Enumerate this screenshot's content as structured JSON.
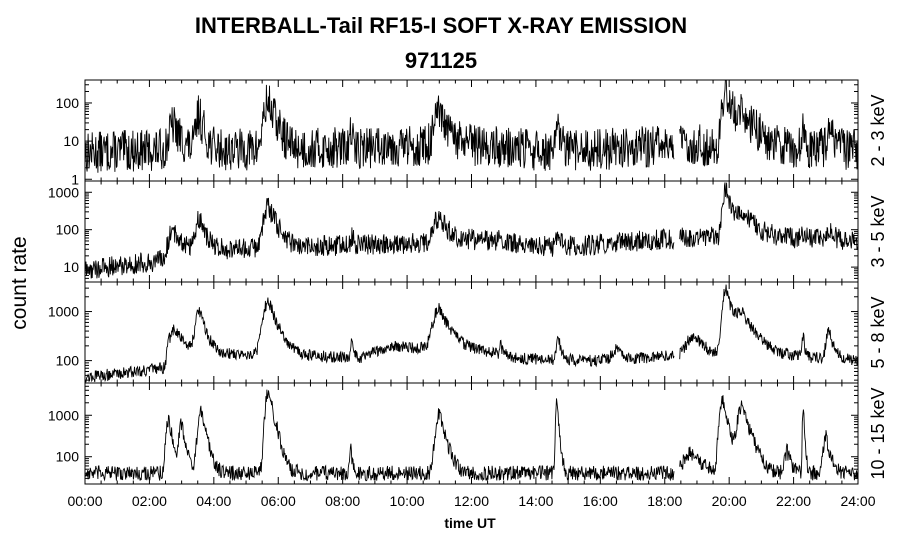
{
  "title": "INTERBALL-Tail RF15-I SOFT X-RAY EMISSION",
  "subtitle": "971125",
  "chart_data": {
    "type": "line",
    "xlabel": "time UT",
    "ylabel": "count rate",
    "xlim": [
      0,
      24
    ],
    "x_ticks": [
      "00:00",
      "02:00",
      "04:00",
      "06:00",
      "08:00",
      "10:00",
      "12:00",
      "14:00",
      "16:00",
      "18:00",
      "20:00",
      "22:00",
      "24:00"
    ],
    "yscale": "log",
    "grid": false,
    "panels": [
      {
        "name": "2 - 3 keV",
        "ylim": [
          0.9,
          400
        ],
        "y_ticks": [
          1,
          10,
          100
        ],
        "y_tick_labels": [
          "1",
          "10",
          "100"
        ],
        "baseline": 5,
        "noise": 0.55,
        "gaps": [
          [
            18.3,
            18.45
          ]
        ],
        "peaks": [
          [
            2.75,
            20,
            0.18
          ],
          [
            3.55,
            45,
            0.12
          ],
          [
            5.7,
            100,
            0.18
          ],
          [
            8.25,
            10,
            0.05
          ],
          [
            9.4,
            8,
            0.05
          ],
          [
            11.0,
            40,
            0.2
          ],
          [
            14.7,
            15,
            0.08
          ],
          [
            19.9,
            250,
            0.12
          ],
          [
            20.4,
            55,
            0.3
          ],
          [
            22.3,
            15,
            0.05
          ],
          [
            23.1,
            15,
            0.1
          ]
        ],
        "segments": [
          [
            0,
            5
          ],
          [
            2.5,
            6
          ],
          [
            6.5,
            6
          ],
          [
            11.8,
            8
          ],
          [
            14.6,
            5
          ],
          [
            18.5,
            8
          ],
          [
            24,
            6
          ]
        ]
      },
      {
        "name": "3 - 5 keV",
        "ylim": [
          4,
          2000
        ],
        "y_ticks": [
          10,
          100,
          1000
        ],
        "y_tick_labels": [
          "10",
          "100",
          "1000"
        ],
        "baseline": 15,
        "noise": 0.28,
        "gaps": [
          [
            18.3,
            18.45
          ]
        ],
        "peaks": [
          [
            2.75,
            50,
            0.18
          ],
          [
            3.55,
            170,
            0.14
          ],
          [
            5.7,
            380,
            0.2
          ],
          [
            8.3,
            30,
            0.05
          ],
          [
            11.0,
            170,
            0.22
          ],
          [
            12.9,
            20,
            0.05
          ],
          [
            14.7,
            40,
            0.08
          ],
          [
            19.9,
            1300,
            0.12
          ],
          [
            20.4,
            250,
            0.3
          ],
          [
            22.3,
            30,
            0.05
          ],
          [
            23.1,
            50,
            0.12
          ]
        ],
        "segments": [
          [
            0,
            8
          ],
          [
            2.5,
            15
          ],
          [
            2.6,
            40
          ],
          [
            4.2,
            30
          ],
          [
            6.5,
            35
          ],
          [
            9.0,
            40
          ],
          [
            10.5,
            45
          ],
          [
            11.8,
            55
          ],
          [
            14.6,
            35
          ],
          [
            15.5,
            38
          ],
          [
            18.5,
            60
          ],
          [
            20.0,
            70
          ],
          [
            22.0,
            60
          ],
          [
            24,
            50
          ]
        ]
      },
      {
        "name": "5 - 8 keV",
        "ylim": [
          35,
          4000
        ],
        "y_ticks": [
          100,
          1000
        ],
        "y_tick_labels": [
          "100",
          "1000"
        ],
        "baseline": 60,
        "noise": 0.12,
        "gaps": [
          [
            18.3,
            18.45
          ]
        ],
        "peaks": [
          [
            2.8,
            250,
            0.2
          ],
          [
            3.55,
            900,
            0.16
          ],
          [
            5.7,
            1500,
            0.22
          ],
          [
            8.3,
            160,
            0.06
          ],
          [
            11.0,
            1000,
            0.25
          ],
          [
            12.9,
            90,
            0.05
          ],
          [
            14.7,
            200,
            0.08
          ],
          [
            16.5,
            60,
            0.2
          ],
          [
            18.9,
            200,
            0.3
          ],
          [
            19.9,
            3000,
            0.13
          ],
          [
            20.4,
            800,
            0.35
          ],
          [
            22.3,
            200,
            0.05
          ],
          [
            23.1,
            300,
            0.12
          ]
        ],
        "segments": [
          [
            0,
            45
          ],
          [
            2.5,
            70
          ],
          [
            2.6,
            200
          ],
          [
            4.2,
            140
          ],
          [
            6.5,
            130
          ],
          [
            8.5,
            110
          ],
          [
            9.5,
            200
          ],
          [
            10.5,
            180
          ],
          [
            11.8,
            180
          ],
          [
            13.5,
            110
          ],
          [
            14.6,
            105
          ],
          [
            15.5,
            100
          ],
          [
            17.0,
            110
          ],
          [
            18.5,
            130
          ],
          [
            22.0,
            120
          ],
          [
            24,
            100
          ]
        ]
      },
      {
        "name": "10 - 15 keV",
        "ylim": [
          22,
          6000
        ],
        "y_ticks": [
          100,
          1000
        ],
        "y_tick_labels": [
          "100",
          "1000"
        ],
        "baseline": 40,
        "noise": 0.18,
        "gaps": [
          [
            18.3,
            18.45
          ]
        ],
        "peaks": [
          [
            2.6,
            800,
            0.1
          ],
          [
            3.0,
            600,
            0.1
          ],
          [
            3.6,
            1200,
            0.12
          ],
          [
            5.7,
            4000,
            0.12
          ],
          [
            8.25,
            150,
            0.04
          ],
          [
            11.0,
            1100,
            0.14
          ],
          [
            14.65,
            1800,
            0.05
          ],
          [
            18.8,
            80,
            0.3
          ],
          [
            19.8,
            2500,
            0.12
          ],
          [
            20.4,
            1500,
            0.18
          ],
          [
            21.8,
            100,
            0.1
          ],
          [
            22.3,
            1500,
            0.03
          ],
          [
            23.0,
            300,
            0.1
          ]
        ],
        "segments": [
          [
            0,
            40
          ],
          [
            24,
            40
          ]
        ]
      }
    ]
  }
}
